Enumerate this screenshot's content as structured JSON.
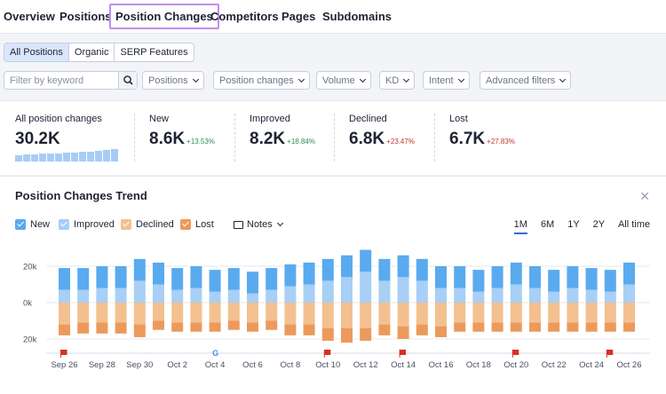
{
  "tabs": [
    "Overview",
    "Positions",
    "Position Changes",
    "Competitors",
    "Pages",
    "Subdomains"
  ],
  "active_tab": "Position Changes",
  "segment": {
    "all": "All Positions",
    "organic": "Organic",
    "serp": "SERP Features"
  },
  "filters": {
    "search_placeholder": "Filter by keyword",
    "positions": "Positions",
    "position_changes": "Position changes",
    "volume": "Volume",
    "kd": "KD",
    "intent": "Intent",
    "advanced": "Advanced filters"
  },
  "summary": {
    "all": {
      "label": "All position changes",
      "value": "30.2K"
    },
    "new": {
      "label": "New",
      "value": "8.6K",
      "change": "+13.53%"
    },
    "improved": {
      "label": "Improved",
      "value": "8.2K",
      "change": "+18.84%"
    },
    "declined": {
      "label": "Declined",
      "value": "6.8K",
      "change": "+23.47%"
    },
    "lost": {
      "label": "Lost",
      "value": "6.7K",
      "change": "+27.83%"
    }
  },
  "trend": {
    "title": "Position Changes Trend",
    "legend": [
      "New",
      "Improved",
      "Declined",
      "Lost"
    ],
    "notes_label": "Notes",
    "ranges": [
      "1M",
      "6M",
      "1Y",
      "2Y",
      "All time"
    ],
    "active_range": "1M",
    "colors": {
      "new": "#5aaaf0",
      "improved": "#a8cff5",
      "declined": "#f4c08f",
      "lost": "#ec9a5c",
      "flag": "#d93025"
    }
  },
  "chart_data": {
    "type": "bar",
    "ylabels": [
      "20k",
      "0k",
      "20k"
    ],
    "x": [
      "Sep 26",
      "Sep 27",
      "Sep 28",
      "Sep 29",
      "Sep 30",
      "Oct 1",
      "Oct 2",
      "Oct 3",
      "Oct 4",
      "Oct 5",
      "Oct 6",
      "Oct 7",
      "Oct 8",
      "Oct 9",
      "Oct 10",
      "Oct 11",
      "Oct 12",
      "Oct 13",
      "Oct 14",
      "Oct 15",
      "Oct 16",
      "Oct 17",
      "Oct 18",
      "Oct 19",
      "Oct 20",
      "Oct 21",
      "Oct 22",
      "Oct 23",
      "Oct 24",
      "Oct 25",
      "Oct 26"
    ],
    "xtick_labels": [
      "Sep 26",
      "Sep 28",
      "Sep 30",
      "Oct 2",
      "Oct 4",
      "Oct 6",
      "Oct 8",
      "Oct 10",
      "Oct 12",
      "Oct 14",
      "Oct 16",
      "Oct 18",
      "Oct 20",
      "Oct 22",
      "Oct 24",
      "Oct 26"
    ],
    "series": [
      {
        "name": "New",
        "values": [
          12,
          12,
          12,
          12,
          12,
          12,
          12,
          12,
          12,
          12,
          12,
          12,
          12,
          12,
          12,
          12,
          12,
          12,
          12,
          12,
          12,
          12,
          12,
          12,
          12,
          12,
          12,
          12,
          12,
          12,
          12
        ]
      },
      {
        "name": "Improved",
        "values": [
          7,
          7,
          8,
          8,
          12,
          10,
          7,
          8,
          6,
          7,
          5,
          7,
          9,
          10,
          12,
          14,
          17,
          12,
          14,
          12,
          8,
          8,
          6,
          8,
          10,
          8,
          6,
          8,
          7,
          6,
          10
        ]
      },
      {
        "name": "Declined",
        "values": [
          -12,
          -11,
          -11,
          -11,
          -12,
          -10,
          -11,
          -11,
          -11,
          -10,
          -11,
          -10,
          -12,
          -12,
          -14,
          -14,
          -14,
          -12,
          -13,
          -12,
          -13,
          -11,
          -11,
          -11,
          -11,
          -11,
          -11,
          -11,
          -11,
          -11,
          -11
        ]
      },
      {
        "name": "Lost",
        "values": [
          -6,
          -6,
          -6,
          -6,
          -7,
          -5,
          -5,
          -5,
          -5,
          -5,
          -5,
          -5,
          -6,
          -6,
          -7,
          -8,
          -7,
          -6,
          -7,
          -6,
          -6,
          -5,
          -5,
          -5,
          -5,
          -5,
          -5,
          -5,
          -5,
          -5,
          -5
        ]
      }
    ],
    "note_flags": [
      "Sep 26",
      "Oct 4",
      "Oct 10",
      "Oct 14",
      "Oct 20",
      "Oct 25"
    ],
    "google_marker": "Oct 4",
    "ylim": [
      -20,
      25
    ]
  }
}
